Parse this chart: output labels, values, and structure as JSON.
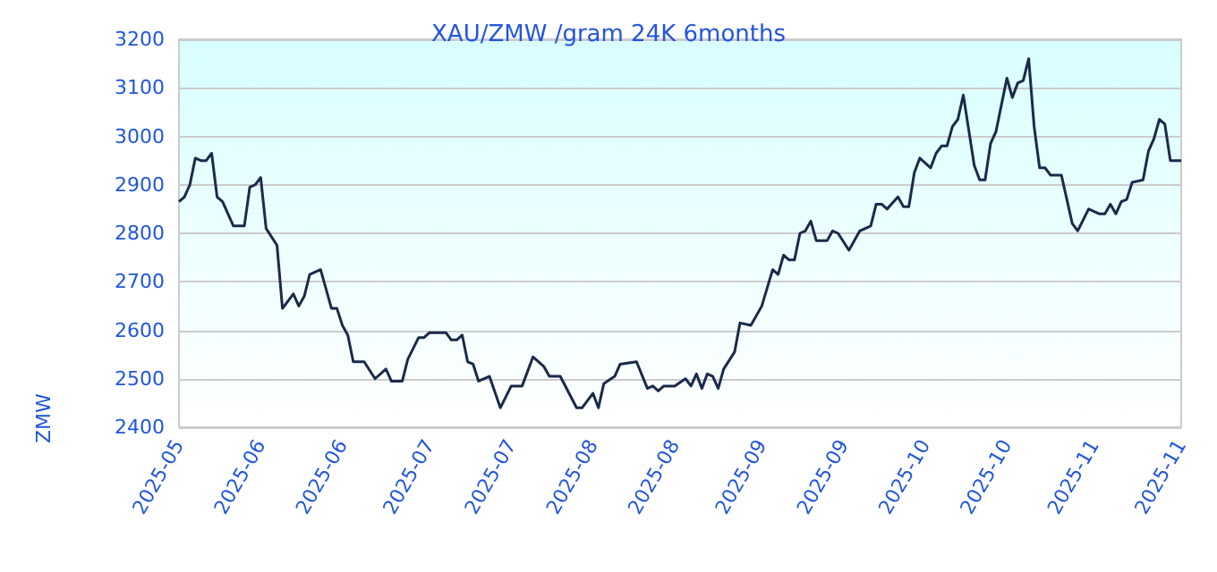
{
  "chart_data": {
    "type": "line",
    "title": "XAU/ZMW /gram 24K 6months",
    "ylabel": "ZMW",
    "x": [
      "2025-05-20",
      "2025-05-21",
      "2025-05-22",
      "2025-05-23",
      "2025-05-24",
      "2025-05-25",
      "2025-05-26",
      "2025-05-27",
      "2025-05-28",
      "2025-05-30",
      "2025-06-01",
      "2025-06-02",
      "2025-06-03",
      "2025-06-04",
      "2025-06-05",
      "2025-06-07",
      "2025-06-08",
      "2025-06-10",
      "2025-06-11",
      "2025-06-12",
      "2025-06-13",
      "2025-06-15",
      "2025-06-17",
      "2025-06-18",
      "2025-06-19",
      "2025-06-20",
      "2025-06-21",
      "2025-06-23",
      "2025-06-25",
      "2025-06-27",
      "2025-06-28",
      "2025-06-30",
      "2025-07-01",
      "2025-07-03",
      "2025-07-04",
      "2025-07-05",
      "2025-07-08",
      "2025-07-09",
      "2025-07-10",
      "2025-07-11",
      "2025-07-12",
      "2025-07-13",
      "2025-07-14",
      "2025-07-16",
      "2025-07-18",
      "2025-07-20",
      "2025-07-22",
      "2025-07-24",
      "2025-07-26",
      "2025-07-27",
      "2025-07-29",
      "2025-08-01",
      "2025-08-02",
      "2025-08-04",
      "2025-08-05",
      "2025-08-06",
      "2025-08-08",
      "2025-08-09",
      "2025-08-12",
      "2025-08-14",
      "2025-08-15",
      "2025-08-16",
      "2025-08-17",
      "2025-08-19",
      "2025-08-21",
      "2025-08-22",
      "2025-08-23",
      "2025-08-24",
      "2025-08-25",
      "2025-08-26",
      "2025-08-27",
      "2025-08-28",
      "2025-08-30",
      "2025-08-31",
      "2025-09-02",
      "2025-09-04",
      "2025-09-06",
      "2025-09-07",
      "2025-09-08",
      "2025-09-09",
      "2025-09-10",
      "2025-09-11",
      "2025-09-12",
      "2025-09-13",
      "2025-09-14",
      "2025-09-16",
      "2025-09-17",
      "2025-09-18",
      "2025-09-20",
      "2025-09-22",
      "2025-09-24",
      "2025-09-25",
      "2025-09-26",
      "2025-09-27",
      "2025-09-29",
      "2025-09-30",
      "2025-10-01",
      "2025-10-02",
      "2025-10-03",
      "2025-10-05",
      "2025-10-06",
      "2025-10-07",
      "2025-10-08",
      "2025-10-09",
      "2025-10-10",
      "2025-10-11",
      "2025-10-13",
      "2025-10-14",
      "2025-10-15",
      "2025-10-16",
      "2025-10-17",
      "2025-10-19",
      "2025-10-20",
      "2025-10-21",
      "2025-10-22",
      "2025-10-23",
      "2025-10-24",
      "2025-10-25",
      "2025-10-26",
      "2025-10-27",
      "2025-10-29",
      "2025-10-31",
      "2025-11-01",
      "2025-11-03",
      "2025-11-05",
      "2025-11-06",
      "2025-11-07",
      "2025-11-08",
      "2025-11-09",
      "2025-11-10",
      "2025-11-11",
      "2025-11-13",
      "2025-11-14",
      "2025-11-15",
      "2025-11-16",
      "2025-11-17",
      "2025-11-18",
      "2025-11-20"
    ],
    "series": [
      {
        "color": "#1a2a4a",
        "values": [
          2865,
          2875,
          2900,
          2955,
          2950,
          2950,
          2965,
          2875,
          2865,
          2815,
          2815,
          2895,
          2900,
          2915,
          2810,
          2775,
          2645,
          2675,
          2650,
          2670,
          2715,
          2725,
          2645,
          2645,
          2610,
          2590,
          2535,
          2535,
          2500,
          2520,
          2495,
          2495,
          2540,
          2585,
          2585,
          2595,
          2595,
          2580,
          2580,
          2590,
          2535,
          2530,
          2495,
          2505,
          2440,
          2485,
          2485,
          2545,
          2525,
          2505,
          2505,
          2440,
          2440,
          2470,
          2440,
          2490,
          2505,
          2530,
          2535,
          2480,
          2485,
          2475,
          2485,
          2485,
          2500,
          2485,
          2510,
          2480,
          2510,
          2505,
          2480,
          2520,
          2555,
          2615,
          2610,
          2650,
          2725,
          2715,
          2755,
          2745,
          2745,
          2800,
          2805,
          2825,
          2785,
          2785,
          2805,
          2800,
          2765,
          2805,
          2815,
          2860,
          2860,
          2850,
          2875,
          2855,
          2855,
          2925,
          2955,
          2935,
          2965,
          2980,
          2980,
          3020,
          3035,
          3085,
          2940,
          2910,
          2910,
          2985,
          3010,
          3120,
          3080,
          3110,
          3115,
          3160,
          3020,
          2935,
          2935,
          2920,
          2920,
          2820,
          2805,
          2850,
          2840,
          2840,
          2860,
          2840,
          2865,
          2870,
          2905,
          2910,
          2970,
          2995,
          3035,
          3025,
          2950,
          2950
        ]
      }
    ],
    "xlim": [
      "2025-05-20",
      "2025-11-20"
    ],
    "xticks": [
      {
        "value": "2025-05-20",
        "label": "2025-05"
      },
      {
        "value": "2025-06-04",
        "label": "2025-06"
      },
      {
        "value": "2025-06-19",
        "label": "2025-06"
      },
      {
        "value": "2025-07-05",
        "label": "2025-07"
      },
      {
        "value": "2025-07-20",
        "label": "2025-07"
      },
      {
        "value": "2025-08-04",
        "label": "2025-08"
      },
      {
        "value": "2025-08-19",
        "label": "2025-08"
      },
      {
        "value": "2025-09-04",
        "label": "2025-09"
      },
      {
        "value": "2025-09-19",
        "label": "2025-09"
      },
      {
        "value": "2025-10-04",
        "label": "2025-10"
      },
      {
        "value": "2025-10-19",
        "label": "2025-10"
      },
      {
        "value": "2025-11-04",
        "label": "2025-11"
      },
      {
        "value": "2025-11-20",
        "label": "2025-11"
      }
    ],
    "ylim": [
      2400,
      3200
    ],
    "yticks": [
      2400,
      2500,
      2600,
      2700,
      2800,
      2900,
      3000,
      3100,
      3200
    ],
    "grid": "y",
    "marker": "none",
    "line_style": "solid"
  }
}
